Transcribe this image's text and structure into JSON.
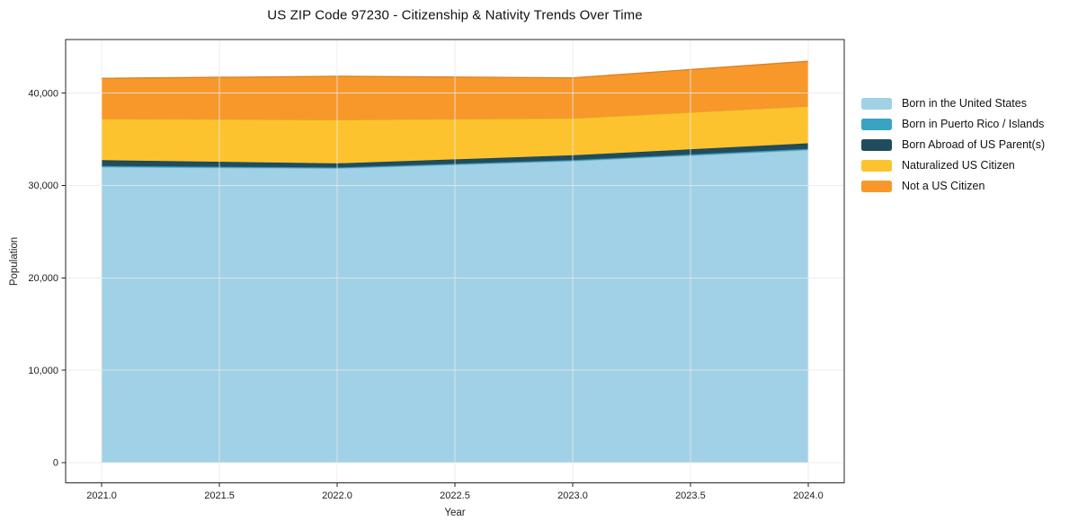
{
  "chart_data": {
    "type": "area",
    "stacked": true,
    "title": "US ZIP Code 97230 - Citizenship & Nativity Trends Over Time",
    "xlabel": "Year",
    "ylabel": "Population",
    "x": [
      2021,
      2022,
      2023,
      2024
    ],
    "series": [
      {
        "name": "Born in the United States",
        "color": "#a1d1e6",
        "values": [
          32000,
          31850,
          32650,
          33850
        ]
      },
      {
        "name": "Born in Puerto Rico / Islands",
        "color": "#39a3c3",
        "values": [
          120,
          100,
          110,
          120
        ]
      },
      {
        "name": "Born Abroad of US Parent(s)",
        "color": "#214c5e",
        "values": [
          620,
          440,
          500,
          600
        ]
      },
      {
        "name": "Naturalized US Citizen",
        "color": "#fdc32e",
        "values": [
          4480,
          4730,
          4020,
          4010
        ]
      },
      {
        "name": "Not a US Citizen",
        "color": "#f8982b",
        "values": [
          4380,
          4700,
          4380,
          4870
        ]
      }
    ],
    "totals": [
      41600,
      41820,
      41660,
      43450
    ],
    "xlim": [
      2020.847,
      2024.153
    ],
    "ylim": [
      -2200,
      45800
    ],
    "xticks": {
      "values": [
        2021.0,
        2021.5,
        2022.0,
        2022.5,
        2023.0,
        2023.5,
        2024.0
      ],
      "labels": [
        "2021.0",
        "2021.5",
        "2022.0",
        "2022.5",
        "2023.0",
        "2023.5",
        "2024.0"
      ]
    },
    "yticks": {
      "values": [
        0,
        10000,
        20000,
        30000,
        40000
      ],
      "labels": [
        "0",
        "10,000",
        "20,000",
        "30,000",
        "40,000"
      ]
    },
    "grid": true,
    "legend_position": "right"
  }
}
